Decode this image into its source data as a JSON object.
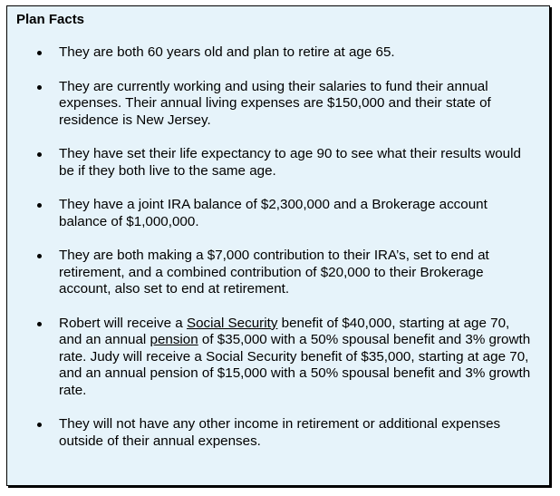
{
  "title": "Plan Facts",
  "colors": {
    "background": "#e6f3fa",
    "border": "#000000",
    "text": "#000000"
  },
  "bullets": [
    {
      "text": "They are both 60 years old and plan to retire at age 65."
    },
    {
      "text": "They are currently working and using their salaries to fund their annual expenses. Their annual living expenses are $150,000 and their state of residence is New Jersey."
    },
    {
      "text": "They have set their life expectancy to age 90 to see what their results would be if they both live to the same age."
    },
    {
      "text": "They have a joint IRA balance of $2,300,000 and a Brokerage account balance of $1,000,000."
    },
    {
      "text": "They are both making a $7,000 contribution to their IRA’s, set to end at retirement, and a combined contribution of $20,000 to their Brokerage account, also set to end at retirement."
    },
    {
      "p1": "Robert will receive a ",
      "link1": "Social Security",
      "p2": " benefit of $40,000, starting at age 70, and an annual ",
      "link2": "pension",
      "p3": " of $35,000 with a 50% spousal benefit and 3% growth rate. Judy will receive a Social Security benefit of $35,000, starting at age 70, and an annual pension of $15,000 with a 50% spousal benefit and 3% growth rate."
    },
    {
      "text": "They will not have any other income in retirement or additional expenses outside of their annual expenses."
    }
  ]
}
